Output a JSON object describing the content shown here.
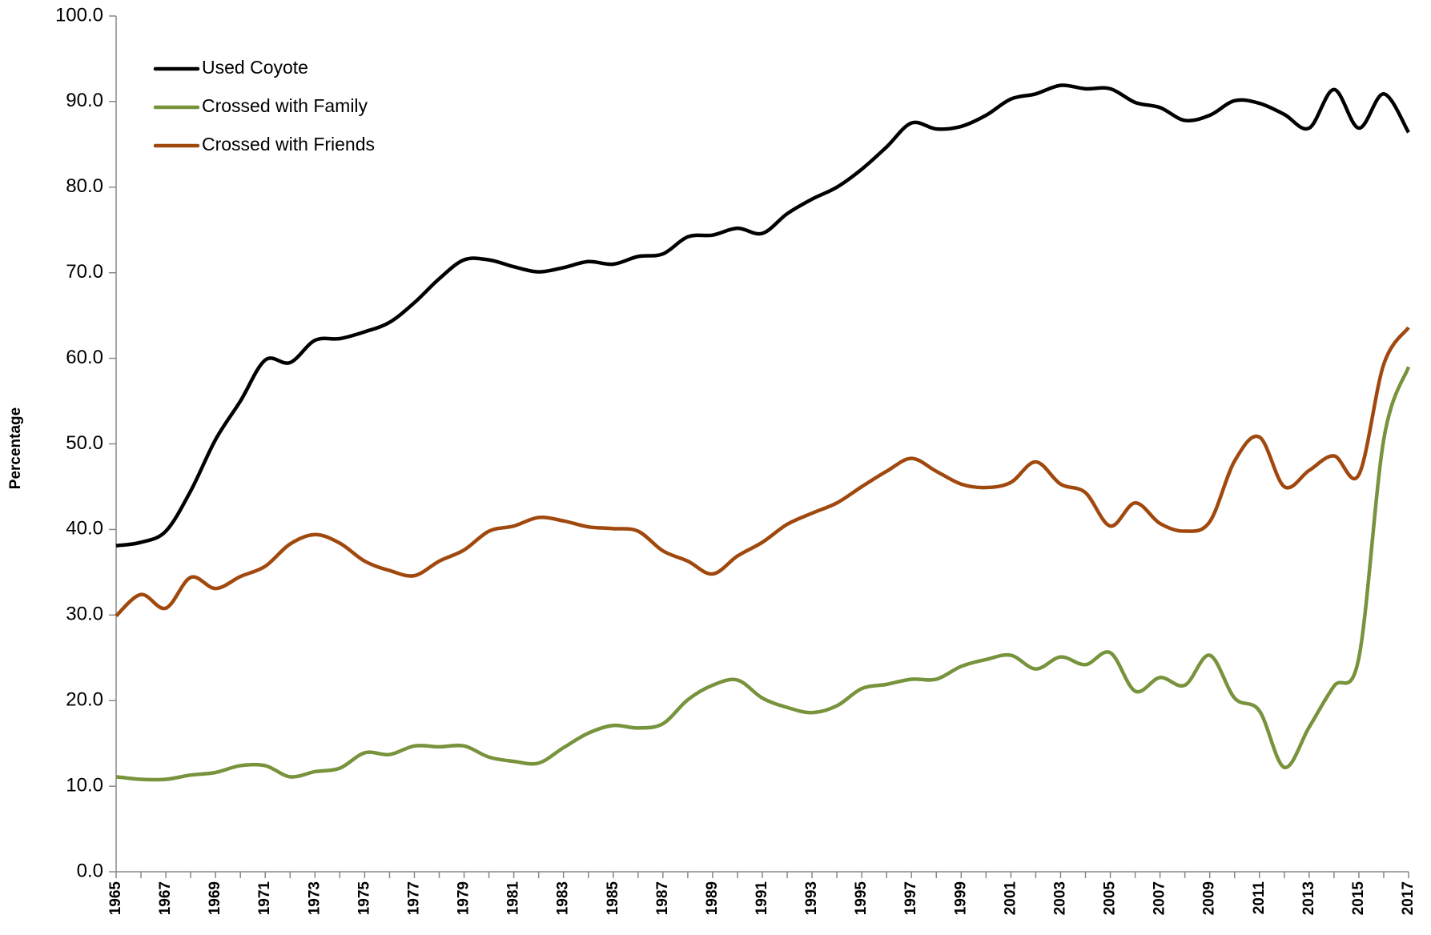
{
  "chart_data": {
    "type": "line",
    "y_label": "Percentage",
    "categories": [
      "1965",
      null,
      "1967",
      null,
      "1969",
      null,
      "1971",
      null,
      "1973",
      null,
      "1975",
      null,
      "1977",
      null,
      "1979",
      null,
      "1981",
      null,
      "1983",
      null,
      "1985",
      null,
      "1987",
      null,
      "1989",
      null,
      "1991",
      null,
      "1993",
      null,
      "1995",
      null,
      "1997",
      null,
      "1999",
      null,
      "2001",
      null,
      "2003",
      null,
      "2005",
      null,
      "2007",
      null,
      "2009",
      null,
      "2011",
      null,
      "2013",
      null,
      "2015",
      null,
      "2017"
    ],
    "series": [
      {
        "name": "Used Coyote",
        "color": "#000000",
        "values": [
          38.1,
          38.5,
          39.8,
          44.5,
          50.5,
          55.0,
          59.8,
          59.5,
          62.1,
          62.3,
          63.1,
          64.2,
          66.5,
          69.3,
          71.5,
          71.5,
          70.7,
          70.1,
          70.6,
          71.3,
          71.0,
          71.9,
          72.2,
          74.2,
          74.4,
          75.2,
          74.6,
          76.9,
          78.6,
          80.0,
          82.1,
          84.7,
          87.5,
          86.8,
          87.1,
          88.4,
          90.3,
          90.9,
          91.9,
          91.5,
          91.5,
          89.9,
          89.3,
          87.8,
          88.4,
          90.1,
          89.8,
          88.5,
          86.9,
          91.4,
          86.9,
          90.9,
          86.4
        ]
      },
      {
        "name": "Crossed with Family",
        "color": "#77933c",
        "values": [
          11.1,
          10.8,
          10.8,
          11.3,
          11.6,
          12.4,
          12.4,
          11.1,
          11.7,
          12.1,
          13.9,
          13.7,
          14.7,
          14.6,
          14.7,
          13.4,
          12.9,
          12.7,
          14.5,
          16.2,
          17.1,
          16.8,
          17.3,
          20.1,
          21.8,
          22.4,
          20.3,
          19.2,
          18.6,
          19.4,
          21.4,
          21.9,
          22.5,
          22.5,
          24.0,
          24.8,
          25.3,
          23.7,
          25.1,
          24.2,
          25.6,
          21.1,
          22.7,
          21.8,
          25.3,
          20.3,
          18.8,
          12.2,
          16.9,
          21.7,
          25.0,
          50.5,
          59.0
        ]
      },
      {
        "name": "Crossed with Friends",
        "color": "#a0480e",
        "values": [
          29.9,
          32.4,
          30.8,
          34.4,
          33.1,
          34.5,
          35.7,
          38.3,
          39.4,
          38.4,
          36.3,
          35.2,
          34.6,
          36.3,
          37.6,
          39.8,
          40.4,
          41.4,
          41.0,
          40.3,
          40.1,
          39.8,
          37.5,
          36.3,
          34.8,
          36.9,
          38.5,
          40.6,
          41.9,
          43.1,
          45.0,
          46.8,
          48.3,
          46.8,
          45.3,
          44.9,
          45.5,
          47.9,
          45.3,
          44.3,
          40.4,
          43.1,
          40.7,
          39.8,
          40.9,
          48.0,
          50.8,
          45.0,
          46.9,
          48.6,
          46.4,
          59.3,
          63.6
        ]
      }
    ],
    "ylim": [
      0,
      100
    ],
    "yticks": [
      {
        "value": 0,
        "label": "0.0"
      },
      {
        "value": 10,
        "label": "10.0"
      },
      {
        "value": 20,
        "label": "20.0"
      },
      {
        "value": 30,
        "label": "30.0"
      },
      {
        "value": 40,
        "label": "40.0"
      },
      {
        "value": 50,
        "label": "50.0"
      },
      {
        "value": 60,
        "label": "60.0"
      },
      {
        "value": 70,
        "label": "70.0"
      },
      {
        "value": 80,
        "label": "80.0"
      },
      {
        "value": 90,
        "label": "90.0"
      },
      {
        "value": 100,
        "label": "100.0"
      }
    ],
    "legend": "upper left",
    "grid": false
  }
}
